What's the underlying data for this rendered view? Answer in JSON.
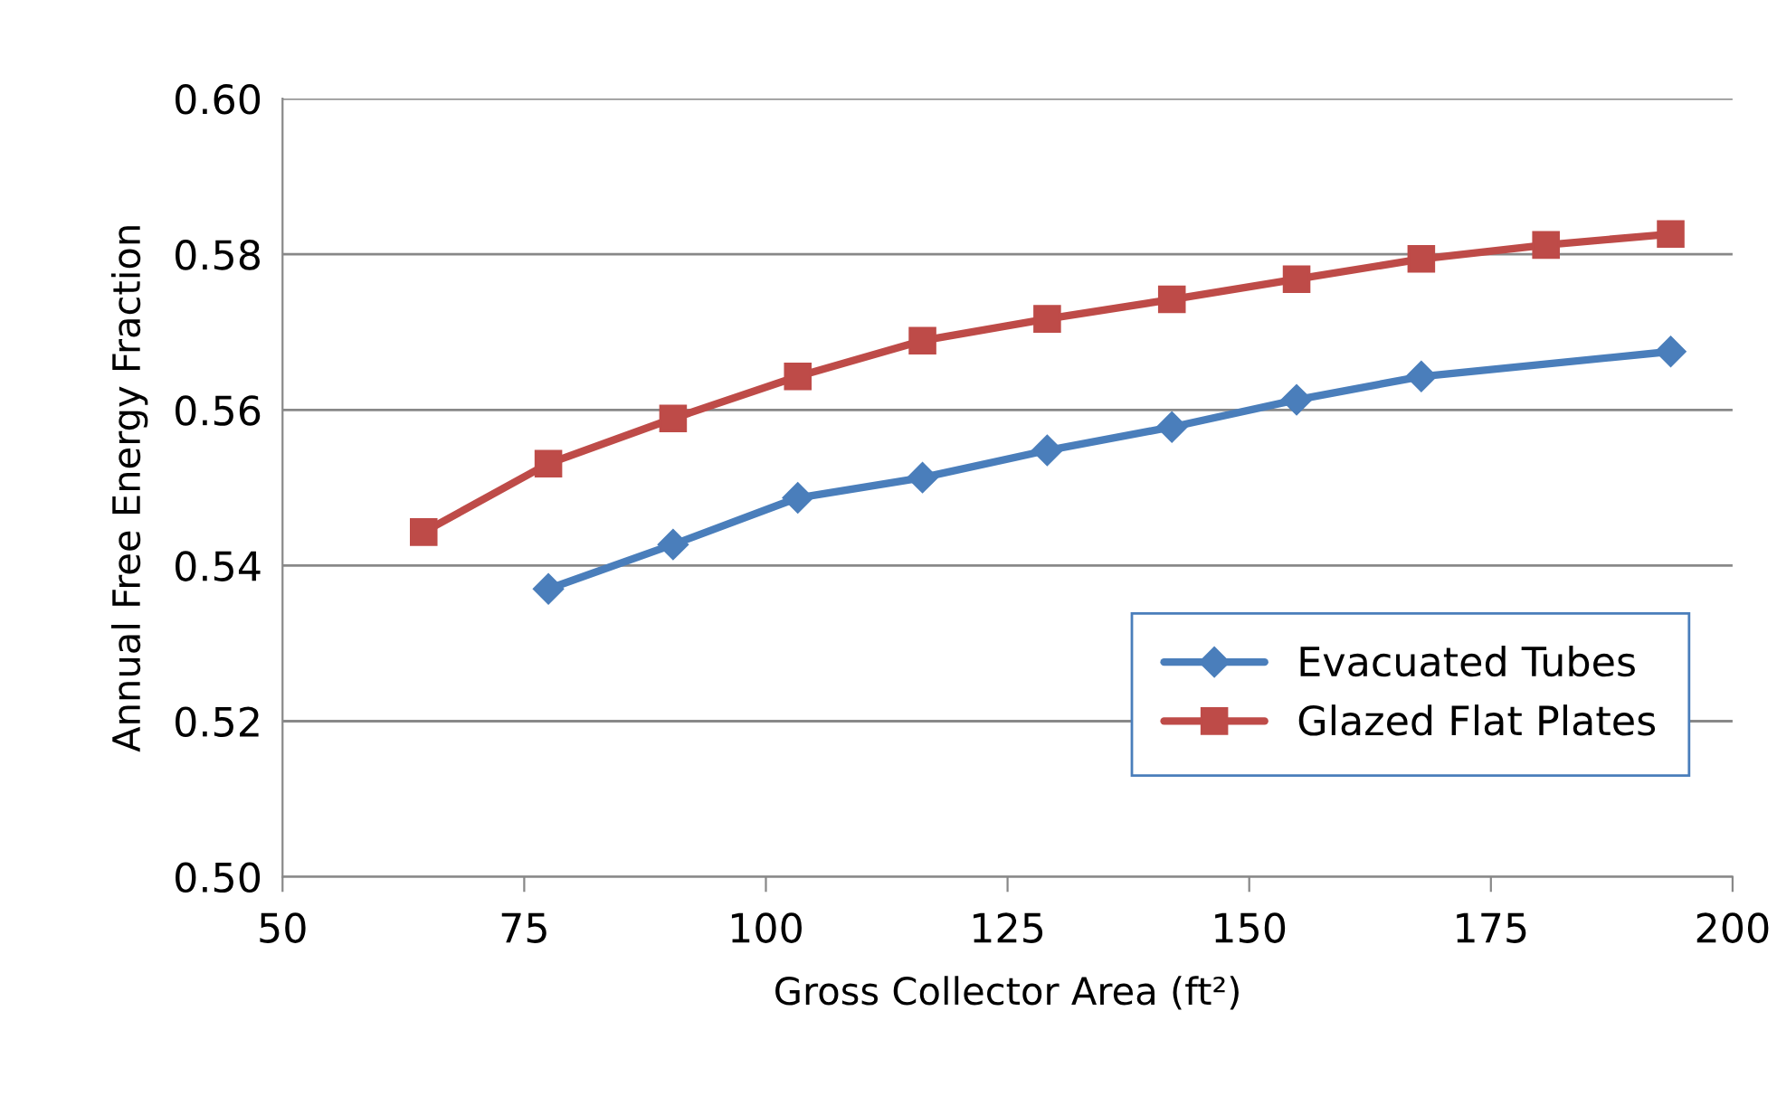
{
  "chart_data": {
    "type": "line",
    "xlabel": "Gross Collector Area (ft²)",
    "ylabel": "Annual Free Energy Fraction",
    "series": [
      {
        "name": "Evacuated Tubes",
        "color": "#4a7ebb",
        "marker": "diamond",
        "x": [
          77.5,
          90.4,
          103.3,
          116.2,
          129.1,
          142.0,
          154.9,
          167.8,
          193.6
        ],
        "values": [
          0.537,
          0.5427,
          0.5487,
          0.5513,
          0.5548,
          0.5578,
          0.5613,
          0.5643,
          0.5675
        ]
      },
      {
        "name": "Glazed Flat Plates",
        "color": "#be4b48",
        "marker": "square",
        "x": [
          64.6,
          77.5,
          90.4,
          103.3,
          116.2,
          129.1,
          142.0,
          154.9,
          167.8,
          180.7,
          193.6
        ],
        "values": [
          0.5443,
          0.5531,
          0.5589,
          0.5643,
          0.5689,
          0.5717,
          0.5742,
          0.5768,
          0.5794,
          0.5812,
          0.5826
        ]
      }
    ],
    "xlim": [
      50,
      200
    ],
    "xticks": [
      50,
      75,
      100,
      125,
      150,
      175,
      200
    ],
    "ylim": [
      0.5,
      0.6
    ],
    "yticks": [
      {
        "value": 0.5,
        "label": "0.50"
      },
      {
        "value": 0.52,
        "label": "0.52"
      },
      {
        "value": 0.54,
        "label": "0.54"
      },
      {
        "value": 0.56,
        "label": "0.56"
      },
      {
        "value": 0.58,
        "label": "0.58"
      },
      {
        "value": 0.6,
        "label": "0.60"
      }
    ],
    "grid": "y",
    "legend": "bottom right",
    "line_style": "solid"
  }
}
